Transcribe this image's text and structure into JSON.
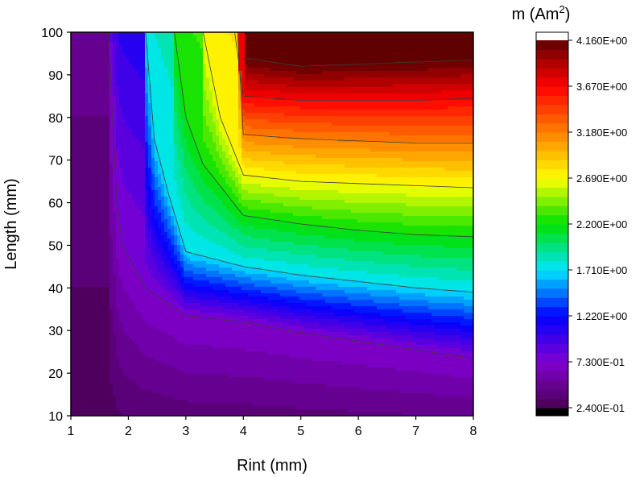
{
  "chart_data": {
    "type": "contour",
    "xlabel": "Rint (mm)",
    "ylabel": "Length (mm)",
    "x_ticks": [
      1,
      2,
      3,
      4,
      5,
      6,
      7,
      8
    ],
    "y_ticks": [
      10,
      20,
      30,
      40,
      50,
      60,
      70,
      80,
      90,
      100
    ],
    "xlim": [
      1,
      8
    ],
    "ylim": [
      10,
      100
    ],
    "colorbar": {
      "title": "m (Am",
      "title_superscript": "2",
      "title_suffix": ")",
      "min": 0.24,
      "max": 4.16,
      "tick_values": [
        0.24,
        0.73,
        1.22,
        1.71,
        2.2,
        2.69,
        3.18,
        3.67,
        4.16
      ],
      "tick_labels": [
        "2.400E-01",
        "7.300E-01",
        "1.220E+00",
        "1.710E+00",
        "2.200E+00",
        "2.690E+00",
        "3.180E+00",
        "3.670E+00",
        "4.160E+00"
      ],
      "levels": 40,
      "colors": [
        "#4a0052",
        "#8000d0",
        "#0000ff",
        "#00e5ff",
        "#00e000",
        "#ffff00",
        "#ff8000",
        "#ff0000",
        "#600000"
      ]
    },
    "contour_lines": [
      {
        "level": 0.73,
        "points": [
          [
            1.65,
            100
          ],
          [
            1.8,
            60
          ],
          [
            1.9,
            50
          ],
          [
            2.3,
            40
          ],
          [
            3,
            33.5
          ],
          [
            4,
            32
          ],
          [
            5,
            29.5
          ],
          [
            6,
            27.5
          ],
          [
            7,
            25.5
          ],
          [
            8,
            23.5
          ]
        ]
      },
      {
        "level": 1.71,
        "points": [
          [
            2.3,
            100
          ],
          [
            2.45,
            75
          ],
          [
            2.7,
            62
          ],
          [
            3,
            48.5
          ],
          [
            4,
            45
          ],
          [
            5,
            43
          ],
          [
            6,
            41.5
          ],
          [
            7,
            40
          ],
          [
            8,
            39
          ]
        ]
      },
      {
        "level": 2.2,
        "points": [
          [
            2.8,
            100
          ],
          [
            3,
            80
          ],
          [
            3.3,
            69
          ],
          [
            4,
            57
          ],
          [
            5,
            55
          ],
          [
            6,
            53.5
          ],
          [
            7,
            52.5
          ],
          [
            8,
            52
          ]
        ]
      },
      {
        "level": 2.69,
        "points": [
          [
            3.3,
            100
          ],
          [
            3.6,
            80
          ],
          [
            4,
            66.5
          ],
          [
            5,
            65
          ],
          [
            6,
            64.5
          ],
          [
            7,
            64
          ],
          [
            8,
            63.5
          ]
        ]
      },
      {
        "level": 3.18,
        "points": [
          [
            3.9,
            100
          ],
          [
            4,
            76
          ],
          [
            5,
            75
          ],
          [
            6,
            74.5
          ],
          [
            7,
            74
          ],
          [
            8,
            74
          ]
        ]
      },
      {
        "level": 3.67,
        "points": [
          [
            3.85,
            100
          ],
          [
            4,
            85
          ],
          [
            5,
            84
          ],
          [
            6,
            84
          ],
          [
            7,
            84
          ],
          [
            8,
            84.5
          ]
        ]
      },
      {
        "level": 4.16,
        "points": [
          [
            4,
            94
          ],
          [
            5,
            92
          ],
          [
            6,
            92.5
          ],
          [
            7,
            93
          ],
          [
            8,
            93.5
          ]
        ]
      }
    ]
  }
}
